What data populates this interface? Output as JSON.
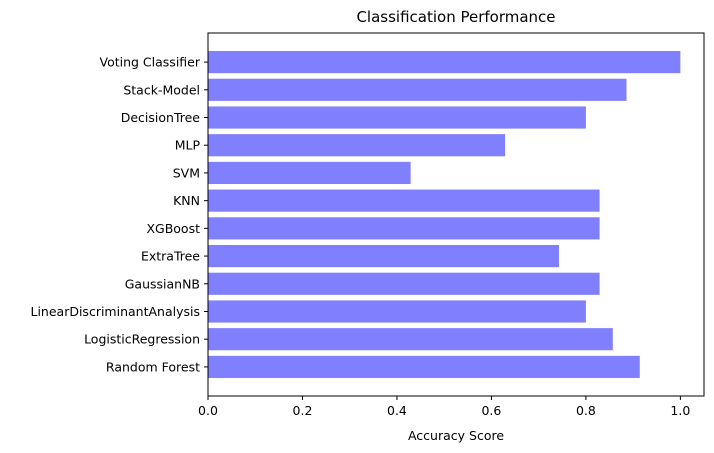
{
  "chart_data": {
    "type": "bar",
    "orientation": "horizontal",
    "title": "Classification Performance",
    "xlabel": "Accuracy Score",
    "ylabel": "",
    "xlim": [
      0,
      1.05
    ],
    "xticks": [
      "0.0",
      "0.2",
      "0.4",
      "0.6",
      "0.8",
      "1.0"
    ],
    "grid": false,
    "legend": "none",
    "bar_color": "#8080ff",
    "categories": [
      "Random Forest",
      "LogisticRegression",
      "LinearDiscriminantAnalysis",
      "GaussianNB",
      "ExtraTree",
      "XGBoost",
      "KNN",
      "SVM",
      "MLP",
      "DecisionTree",
      "Stack-Model",
      "Voting Classifier"
    ],
    "values": [
      0.914,
      0.857,
      0.8,
      0.829,
      0.743,
      0.829,
      0.829,
      0.429,
      0.629,
      0.8,
      0.886,
      1.0
    ]
  }
}
